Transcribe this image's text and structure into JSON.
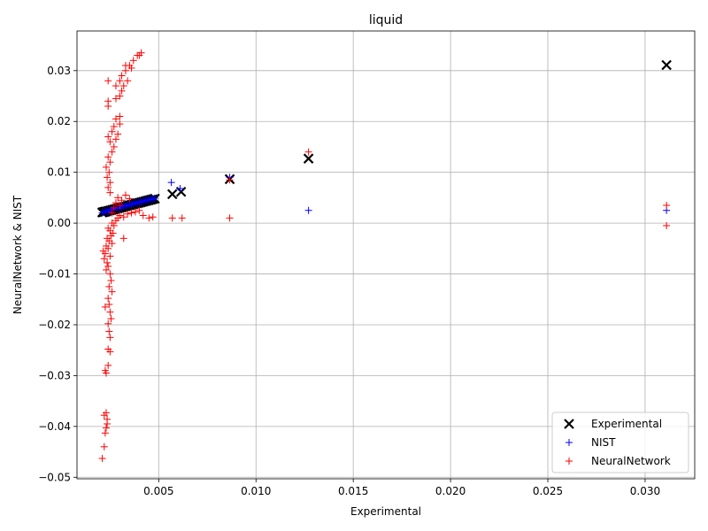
{
  "chart_data": {
    "type": "scatter",
    "title": "liquid",
    "xlabel": "Experimental",
    "ylabel": "NeuralNetwork & NIST",
    "xlim": [
      0.0008,
      0.03255
    ],
    "ylim": [
      -0.0503,
      0.0378
    ],
    "xticks": [
      0.005,
      0.01,
      0.015,
      0.02,
      0.025,
      0.03
    ],
    "xtick_labels": [
      "0.005",
      "0.010",
      "0.015",
      "0.020",
      "0.025",
      "0.030"
    ],
    "yticks": [
      -0.05,
      -0.04,
      -0.03,
      -0.02,
      -0.01,
      0.0,
      0.01,
      0.02,
      0.03
    ],
    "ytick_labels": [
      "−0.05",
      "−0.04",
      "−0.03",
      "−0.02",
      "−0.01",
      "0.00",
      "0.01",
      "0.02",
      "0.03"
    ],
    "grid": true,
    "legend_position": "bottom-right",
    "series": [
      {
        "name": "Experimental",
        "marker": "x",
        "color": "#000000",
        "points": [
          [
            0.0021,
            0.0021
          ],
          [
            0.00215,
            0.00215
          ],
          [
            0.0022,
            0.0022
          ],
          [
            0.00225,
            0.00225
          ],
          [
            0.0023,
            0.0023
          ],
          [
            0.0024,
            0.0024
          ],
          [
            0.0025,
            0.0025
          ],
          [
            0.0026,
            0.0026
          ],
          [
            0.0027,
            0.0027
          ],
          [
            0.0028,
            0.0028
          ],
          [
            0.0029,
            0.0029
          ],
          [
            0.003,
            0.003
          ],
          [
            0.0031,
            0.0031
          ],
          [
            0.0032,
            0.0032
          ],
          [
            0.0033,
            0.0033
          ],
          [
            0.0034,
            0.0034
          ],
          [
            0.0035,
            0.0035
          ],
          [
            0.0036,
            0.0036
          ],
          [
            0.0037,
            0.0037
          ],
          [
            0.0038,
            0.0038
          ],
          [
            0.0039,
            0.0039
          ],
          [
            0.004,
            0.004
          ],
          [
            0.0041,
            0.0041
          ],
          [
            0.0042,
            0.0042
          ],
          [
            0.0043,
            0.0043
          ],
          [
            0.0044,
            0.0044
          ],
          [
            0.0045,
            0.0045
          ],
          [
            0.0046,
            0.0046
          ],
          [
            0.0047,
            0.0047
          ],
          [
            0.0048,
            0.0048
          ],
          [
            0.0057,
            0.0057
          ],
          [
            0.00615,
            0.00615
          ],
          [
            0.00865,
            0.00865
          ],
          [
            0.0127,
            0.0127
          ],
          [
            0.0311,
            0.0311
          ]
        ]
      },
      {
        "name": "NIST",
        "marker": "+",
        "color": "#0000ff",
        "points": [
          [
            0.0021,
            0.002
          ],
          [
            0.0022,
            0.0023
          ],
          [
            0.0023,
            0.0024
          ],
          [
            0.0024,
            0.0022
          ],
          [
            0.0025,
            0.0026
          ],
          [
            0.0026,
            0.0027
          ],
          [
            0.0027,
            0.0028
          ],
          [
            0.0028,
            0.003
          ],
          [
            0.0029,
            0.0029
          ],
          [
            0.003,
            0.0031
          ],
          [
            0.0031,
            0.0032
          ],
          [
            0.0032,
            0.0033
          ],
          [
            0.0033,
            0.0034
          ],
          [
            0.0034,
            0.0035
          ],
          [
            0.0035,
            0.0036
          ],
          [
            0.0036,
            0.0037
          ],
          [
            0.0037,
            0.0038
          ],
          [
            0.0038,
            0.004
          ],
          [
            0.0039,
            0.0039
          ],
          [
            0.004,
            0.0041
          ],
          [
            0.0041,
            0.0042
          ],
          [
            0.0042,
            0.0043
          ],
          [
            0.0043,
            0.0044
          ],
          [
            0.0044,
            0.0045
          ],
          [
            0.0045,
            0.0046
          ],
          [
            0.0046,
            0.0047
          ],
          [
            0.0047,
            0.0048
          ],
          [
            0.0048,
            0.0049
          ],
          [
            0.00565,
            0.008
          ],
          [
            0.0061,
            0.0068
          ],
          [
            0.00865,
            0.009
          ],
          [
            0.0127,
            0.0025
          ],
          [
            0.0311,
            0.0025
          ]
        ]
      },
      {
        "name": "NeuralNetwork",
        "marker": "+",
        "color": "#ff0000",
        "points": [
          [
            0.0021,
            -0.0463
          ],
          [
            0.0022,
            -0.044
          ],
          [
            0.00225,
            -0.0413
          ],
          [
            0.0023,
            -0.0403
          ],
          [
            0.00235,
            -0.0395
          ],
          [
            0.0022,
            -0.0378
          ],
          [
            0.0023,
            -0.0373
          ],
          [
            0.00235,
            -0.0386
          ],
          [
            0.0023,
            -0.0295
          ],
          [
            0.00225,
            -0.029
          ],
          [
            0.0024,
            -0.028
          ],
          [
            0.0025,
            -0.0253
          ],
          [
            0.0024,
            -0.0248
          ],
          [
            0.0025,
            -0.0225
          ],
          [
            0.00245,
            -0.0213
          ],
          [
            0.0024,
            -0.0198
          ],
          [
            0.00255,
            -0.0188
          ],
          [
            0.0025,
            -0.0175
          ],
          [
            0.00225,
            -0.0165
          ],
          [
            0.00245,
            -0.016
          ],
          [
            0.0024,
            -0.0148
          ],
          [
            0.0026,
            -0.0135
          ],
          [
            0.00245,
            -0.0125
          ],
          [
            0.00255,
            -0.0113
          ],
          [
            0.0025,
            -0.01
          ],
          [
            0.0023,
            -0.0092
          ],
          [
            0.0024,
            -0.0085
          ],
          [
            0.00235,
            -0.0078
          ],
          [
            0.0022,
            -0.007
          ],
          [
            0.0025,
            -0.0065
          ],
          [
            0.00225,
            -0.006
          ],
          [
            0.00215,
            -0.0055
          ],
          [
            0.0024,
            -0.005
          ],
          [
            0.0023,
            -0.0045
          ],
          [
            0.0026,
            -0.004
          ],
          [
            0.00245,
            -0.0035
          ],
          [
            0.00235,
            -0.003
          ],
          [
            0.00255,
            -0.0025
          ],
          [
            0.00265,
            -0.002
          ],
          [
            0.0025,
            -0.0015
          ],
          [
            0.0024,
            -0.001
          ],
          [
            0.0027,
            -0.0005
          ],
          [
            0.0026,
            0.0
          ],
          [
            0.0028,
            0.0005
          ],
          [
            0.0029,
            0.001
          ],
          [
            0.003,
            0.0015
          ],
          [
            0.0032,
            0.0012
          ],
          [
            0.0034,
            0.0018
          ],
          [
            0.0036,
            0.002
          ],
          [
            0.0038,
            0.0022
          ],
          [
            0.004,
            0.0025
          ],
          [
            0.0042,
            0.0015
          ],
          [
            0.0045,
            0.001
          ],
          [
            0.0047,
            0.0012
          ],
          [
            0.0032,
            -0.003
          ],
          [
            0.0026,
            0.002
          ],
          [
            0.0027,
            0.003
          ],
          [
            0.0028,
            0.004
          ],
          [
            0.0029,
            0.005
          ],
          [
            0.003,
            0.0035
          ],
          [
            0.0031,
            0.0045
          ],
          [
            0.0033,
            0.0055
          ],
          [
            0.0035,
            0.0048
          ],
          [
            0.0025,
            0.006
          ],
          [
            0.0024,
            0.007
          ],
          [
            0.0025,
            0.008
          ],
          [
            0.00235,
            0.009
          ],
          [
            0.00245,
            0.01
          ],
          [
            0.0023,
            0.011
          ],
          [
            0.0025,
            0.012
          ],
          [
            0.0024,
            0.013
          ],
          [
            0.0026,
            0.014
          ],
          [
            0.0027,
            0.015
          ],
          [
            0.0025,
            0.016
          ],
          [
            0.0028,
            0.0165
          ],
          [
            0.0024,
            0.017
          ],
          [
            0.0029,
            0.0175
          ],
          [
            0.0026,
            0.018
          ],
          [
            0.0027,
            0.019
          ],
          [
            0.003,
            0.0195
          ],
          [
            0.0028,
            0.0205
          ],
          [
            0.003,
            0.021
          ],
          [
            0.0024,
            0.023
          ],
          [
            0.0024,
            0.024
          ],
          [
            0.0028,
            0.0245
          ],
          [
            0.003,
            0.025
          ],
          [
            0.0031,
            0.026
          ],
          [
            0.0028,
            0.027
          ],
          [
            0.0032,
            0.027
          ],
          [
            0.0034,
            0.028
          ],
          [
            0.003,
            0.028
          ],
          [
            0.0024,
            0.028
          ],
          [
            0.0031,
            0.029
          ],
          [
            0.0033,
            0.03
          ],
          [
            0.0035,
            0.031
          ],
          [
            0.0037,
            0.032
          ],
          [
            0.0039,
            0.033
          ],
          [
            0.0041,
            0.0335
          ],
          [
            0.0033,
            0.031
          ],
          [
            0.0036,
            0.0305
          ],
          [
            0.004,
            0.033
          ],
          [
            0.0057,
            0.001
          ],
          [
            0.0062,
            0.001
          ],
          [
            0.00865,
            0.001
          ],
          [
            0.00865,
            0.0085
          ],
          [
            0.0127,
            0.014
          ],
          [
            0.0311,
            0.0035
          ],
          [
            0.0311,
            -0.0005
          ]
        ]
      }
    ]
  }
}
